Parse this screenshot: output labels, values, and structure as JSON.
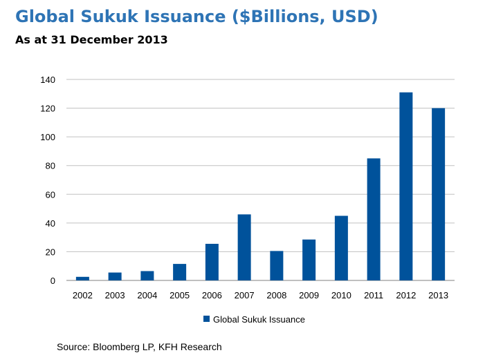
{
  "header": {
    "title": "Global Sukuk Issuance ($Billions, USD)",
    "subtitle": "As at 31 December 2013"
  },
  "footer": {
    "source": "Source: Bloomberg LP, KFH Research"
  },
  "chart_data": {
    "type": "bar",
    "title": "Global Sukuk Issuance ($Billions, USD)",
    "subtitle": "As at 31 December 2013",
    "xlabel": "",
    "ylabel": "",
    "categories": [
      "2002",
      "2003",
      "2004",
      "2005",
      "2006",
      "2007",
      "2008",
      "2009",
      "2010",
      "2011",
      "2012",
      "2013"
    ],
    "series": [
      {
        "name": "Global Sukuk Issuance",
        "values": [
          2.5,
          5.5,
          6.5,
          11.5,
          25.5,
          46,
          20.5,
          28.5,
          45,
          85,
          131,
          120
        ],
        "color": "#00529b"
      }
    ],
    "ylim": [
      0,
      140
    ],
    "yticks": [
      0,
      20,
      40,
      60,
      80,
      100,
      120,
      140
    ],
    "grid": true,
    "legend": "bottom"
  }
}
